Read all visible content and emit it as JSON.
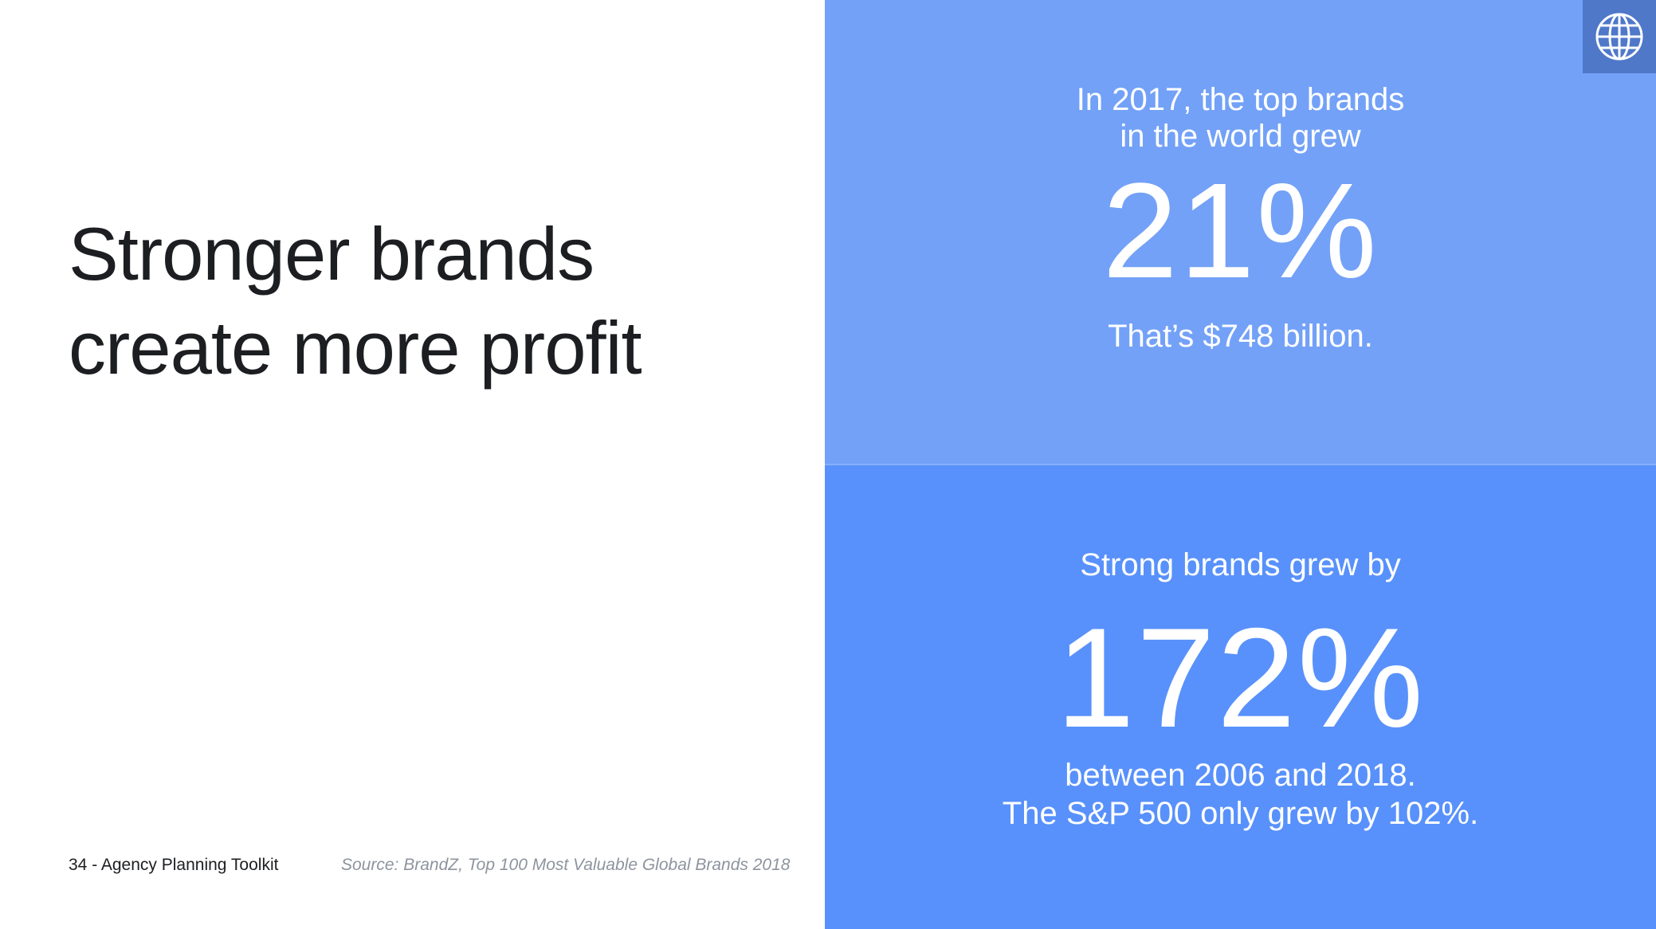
{
  "headline": {
    "line1": "Stronger brands",
    "line2": "create more profit"
  },
  "footer": {
    "page_label": "34  -  Agency Planning Toolkit",
    "source": "Source: BrandZ, Top 100 Most Valuable Global Brands 2018"
  },
  "stat_top": {
    "intro_line1": "In 2017, the top brands",
    "intro_line2": "in the world grew",
    "value": "21%",
    "note": "That’s $748 billion."
  },
  "stat_bottom": {
    "intro": "Strong brands grew by",
    "value": "172%",
    "note_line1": "between 2006 and 2018.",
    "note_line2": "The S&P 500 only grew by 102%."
  },
  "colors": {
    "panel_top": "#73a1f7",
    "panel_bottom": "#5891fb",
    "globe_badge": "#4f78c9",
    "headline_text": "#1c1e21",
    "source_text": "#8d949e"
  },
  "icons": {
    "corner": "globe-icon"
  }
}
